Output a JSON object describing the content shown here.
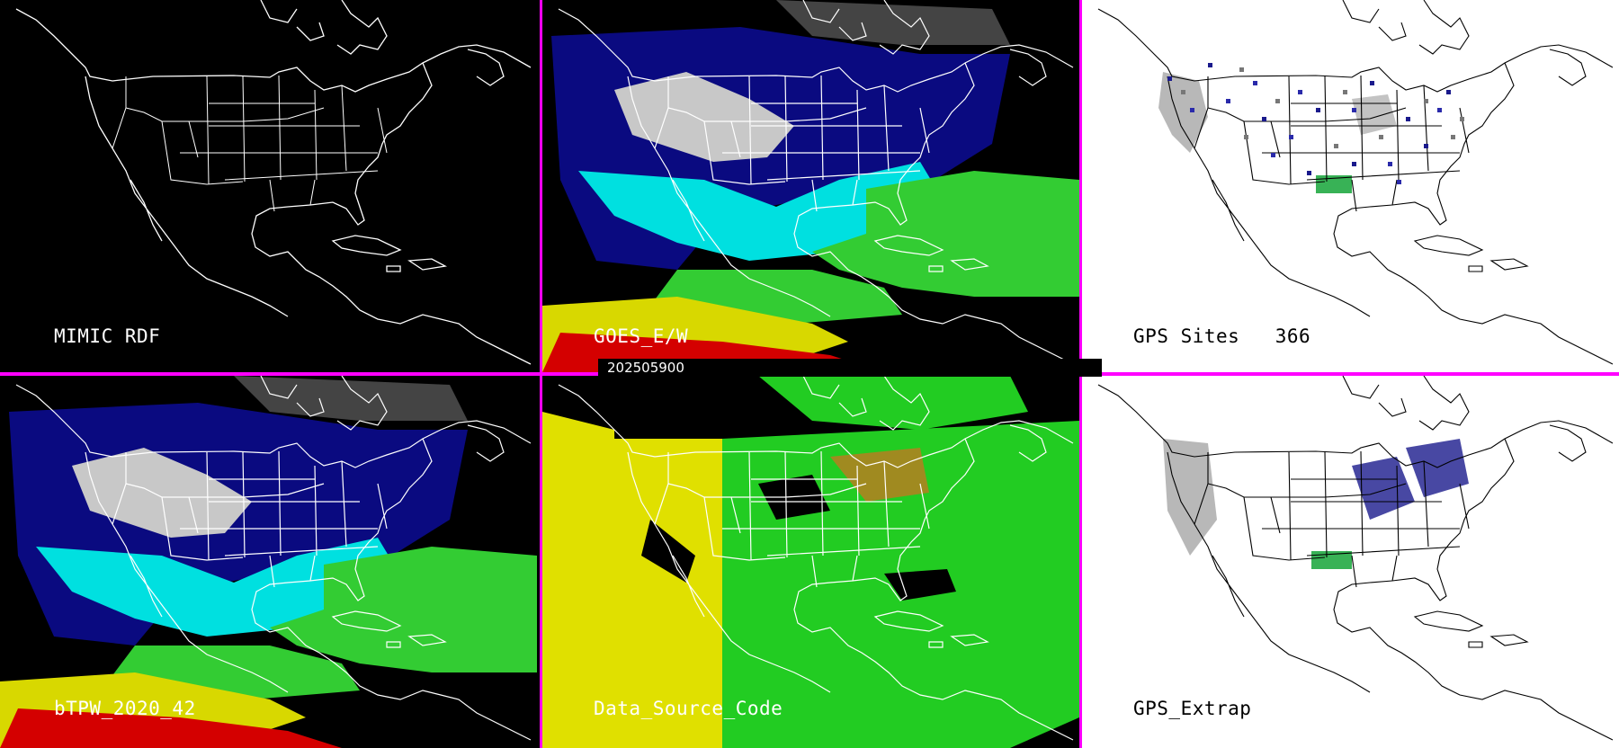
{
  "panels": [
    {
      "id": "mimic",
      "label": "MIMIC RDF",
      "theme": "dark"
    },
    {
      "id": "goes",
      "label": "GOES_E/W",
      "theme": "dark"
    },
    {
      "id": "gps",
      "label": "GPS Sites   366",
      "theme": "light"
    },
    {
      "id": "btpw",
      "label": "bTPW_2020_42",
      "theme": "dark"
    },
    {
      "id": "dsc",
      "label": "Data_Source_Code",
      "theme": "dark"
    },
    {
      "id": "gpsx",
      "label": "GPS_Extrap",
      "theme": "light"
    }
  ],
  "timestamp": "202505900",
  "colors": {
    "divider": "#ff00ff",
    "tpw_low": "#0a0a80",
    "tpw_mid": "#00e0e0",
    "tpw_high": "#33cc33",
    "tpw_higher": "#d8d800",
    "tpw_max": "#d40000",
    "dry": "#c8c8c8",
    "source_yellow": "#e0e000",
    "source_green": "#22cc22",
    "source_olive": "#a08a20"
  }
}
